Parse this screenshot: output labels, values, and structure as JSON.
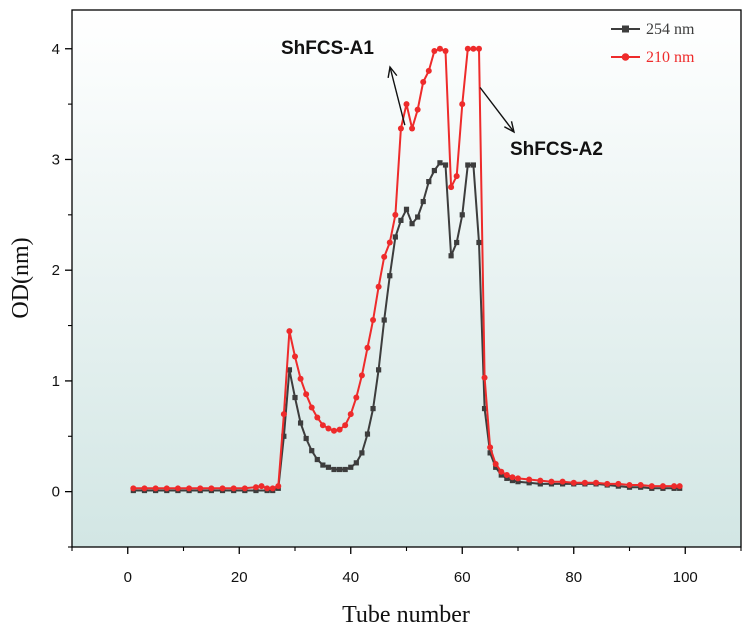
{
  "chart_data": {
    "type": "line",
    "title": "",
    "xlabel": "Tube number",
    "ylabel": "OD(nm)",
    "xlim": [
      -10,
      110
    ],
    "ylim": [
      -0.5,
      4.35
    ],
    "xticks": [
      "0",
      "20",
      "40",
      "60",
      "80",
      "100"
    ],
    "yticks": [
      "0",
      "1",
      "2",
      "3",
      "4"
    ],
    "grid": false,
    "legend_position": "top-right",
    "background_gradient": [
      "#ffffff",
      "#d2e6e4"
    ],
    "series": [
      {
        "name": "254 nm",
        "color": "#3d3d3d",
        "marker": "square",
        "points": [
          [
            1,
            0.01
          ],
          [
            3,
            0.01
          ],
          [
            5,
            0.01
          ],
          [
            7,
            0.01
          ],
          [
            9,
            0.01
          ],
          [
            11,
            0.01
          ],
          [
            13,
            0.01
          ],
          [
            15,
            0.01
          ],
          [
            17,
            0.01
          ],
          [
            19,
            0.01
          ],
          [
            21,
            0.01
          ],
          [
            23,
            0.01
          ],
          [
            25,
            0.01
          ],
          [
            26,
            0.01
          ],
          [
            27,
            0.03
          ],
          [
            28,
            0.5
          ],
          [
            29,
            1.1
          ],
          [
            30,
            0.85
          ],
          [
            31,
            0.62
          ],
          [
            32,
            0.48
          ],
          [
            33,
            0.37
          ],
          [
            34,
            0.29
          ],
          [
            35,
            0.24
          ],
          [
            36,
            0.22
          ],
          [
            37,
            0.2
          ],
          [
            38,
            0.2
          ],
          [
            39,
            0.2
          ],
          [
            40,
            0.22
          ],
          [
            41,
            0.26
          ],
          [
            42,
            0.35
          ],
          [
            43,
            0.52
          ],
          [
            44,
            0.75
          ],
          [
            45,
            1.1
          ],
          [
            46,
            1.55
          ],
          [
            47,
            1.95
          ],
          [
            48,
            2.3
          ],
          [
            49,
            2.45
          ],
          [
            50,
            2.55
          ],
          [
            51,
            2.42
          ],
          [
            52,
            2.48
          ],
          [
            53,
            2.62
          ],
          [
            54,
            2.8
          ],
          [
            55,
            2.9
          ],
          [
            56,
            2.97
          ],
          [
            57,
            2.95
          ],
          [
            58,
            2.13
          ],
          [
            59,
            2.25
          ],
          [
            60,
            2.5
          ],
          [
            61,
            2.95
          ],
          [
            62,
            2.95
          ],
          [
            63,
            2.25
          ],
          [
            64,
            0.75
          ],
          [
            65,
            0.35
          ],
          [
            66,
            0.22
          ],
          [
            67,
            0.15
          ],
          [
            68,
            0.12
          ],
          [
            69,
            0.1
          ],
          [
            70,
            0.09
          ],
          [
            72,
            0.08
          ],
          [
            74,
            0.07
          ],
          [
            76,
            0.07
          ],
          [
            78,
            0.07
          ],
          [
            80,
            0.07
          ],
          [
            82,
            0.07
          ],
          [
            84,
            0.07
          ],
          [
            86,
            0.06
          ],
          [
            88,
            0.05
          ],
          [
            90,
            0.04
          ],
          [
            92,
            0.04
          ],
          [
            94,
            0.03
          ],
          [
            96,
            0.03
          ],
          [
            98,
            0.03
          ],
          [
            99,
            0.03
          ]
        ]
      },
      {
        "name": "210 nm",
        "color": "#ee2b2b",
        "marker": "circle",
        "points": [
          [
            1,
            0.03
          ],
          [
            3,
            0.03
          ],
          [
            5,
            0.03
          ],
          [
            7,
            0.03
          ],
          [
            9,
            0.03
          ],
          [
            11,
            0.03
          ],
          [
            13,
            0.03
          ],
          [
            15,
            0.03
          ],
          [
            17,
            0.03
          ],
          [
            19,
            0.03
          ],
          [
            21,
            0.03
          ],
          [
            23,
            0.04
          ],
          [
            24,
            0.05
          ],
          [
            25,
            0.03
          ],
          [
            26,
            0.03
          ],
          [
            27,
            0.05
          ],
          [
            28,
            0.7
          ],
          [
            29,
            1.45
          ],
          [
            30,
            1.22
          ],
          [
            31,
            1.02
          ],
          [
            32,
            0.88
          ],
          [
            33,
            0.76
          ],
          [
            34,
            0.67
          ],
          [
            35,
            0.6
          ],
          [
            36,
            0.57
          ],
          [
            37,
            0.55
          ],
          [
            38,
            0.56
          ],
          [
            39,
            0.6
          ],
          [
            40,
            0.7
          ],
          [
            41,
            0.85
          ],
          [
            42,
            1.05
          ],
          [
            43,
            1.3
          ],
          [
            44,
            1.55
          ],
          [
            45,
            1.85
          ],
          [
            46,
            2.12
          ],
          [
            47,
            2.25
          ],
          [
            48,
            2.5
          ],
          [
            49,
            3.28
          ],
          [
            50,
            3.5
          ],
          [
            51,
            3.28
          ],
          [
            52,
            3.45
          ],
          [
            53,
            3.7
          ],
          [
            54,
            3.8
          ],
          [
            55,
            3.98
          ],
          [
            56,
            4.0
          ],
          [
            57,
            3.98
          ],
          [
            58,
            2.75
          ],
          [
            59,
            2.85
          ],
          [
            60,
            3.5
          ],
          [
            61,
            4.0
          ],
          [
            62,
            4.0
          ],
          [
            63,
            4.0
          ],
          [
            64,
            1.03
          ],
          [
            65,
            0.4
          ],
          [
            66,
            0.25
          ],
          [
            67,
            0.18
          ],
          [
            68,
            0.15
          ],
          [
            69,
            0.13
          ],
          [
            70,
            0.12
          ],
          [
            72,
            0.11
          ],
          [
            74,
            0.1
          ],
          [
            76,
            0.09
          ],
          [
            78,
            0.09
          ],
          [
            80,
            0.08
          ],
          [
            82,
            0.08
          ],
          [
            84,
            0.08
          ],
          [
            86,
            0.07
          ],
          [
            88,
            0.07
          ],
          [
            90,
            0.06
          ],
          [
            92,
            0.06
          ],
          [
            94,
            0.05
          ],
          [
            96,
            0.05
          ],
          [
            98,
            0.05
          ],
          [
            99,
            0.05
          ]
        ]
      }
    ],
    "annotations": [
      {
        "text": "ShFCS-A1",
        "arrow_to": [
          49.7,
          3.31
        ]
      },
      {
        "text": "ShFCS-A2",
        "arrow_to": [
          63.2,
          3.65
        ]
      }
    ]
  }
}
